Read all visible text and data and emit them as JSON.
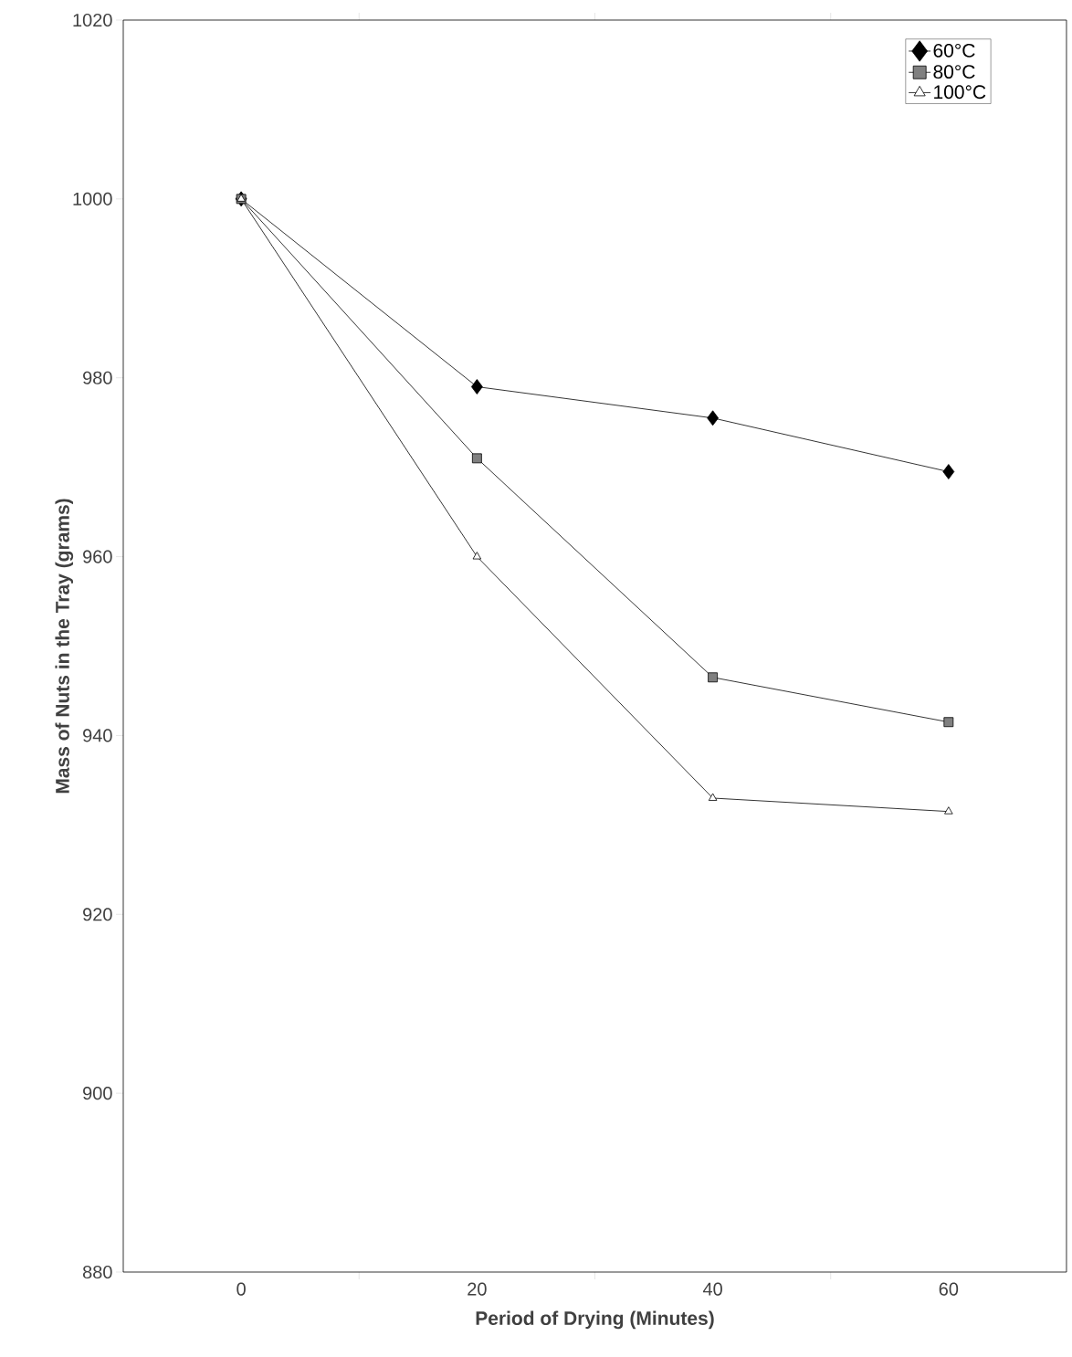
{
  "chart_data": {
    "type": "line",
    "xlabel": "Period of Drying (Minutes)",
    "ylabel": "Mass of Nuts in the Tray (grams)",
    "x": [
      0,
      20,
      40,
      60
    ],
    "series": [
      {
        "name": "60°C",
        "color": "#000000",
        "marker": "diamond",
        "values": [
          1000,
          979,
          975.5,
          969.5
        ]
      },
      {
        "name": "80°C",
        "color": "#000000",
        "marker": "square",
        "values": [
          1000,
          971,
          946.5,
          941.5
        ]
      },
      {
        "name": "100°C",
        "color": "#000000",
        "marker": "triangle",
        "values": [
          1000,
          960,
          933,
          931.5
        ]
      }
    ],
    "xlim": [
      -10,
      70
    ],
    "xticks": [
      0,
      20,
      40,
      60,
      {
        "value": 10,
        "label": null
      },
      {
        "value": 30,
        "label": null
      },
      {
        "value": 50,
        "label": null
      }
    ],
    "ylim": [
      880,
      1020
    ],
    "yticks": [
      880,
      900,
      920,
      940,
      960,
      980,
      1000,
      1020
    ],
    "legend": "top right",
    "grid": false,
    "line_style": "solid"
  }
}
